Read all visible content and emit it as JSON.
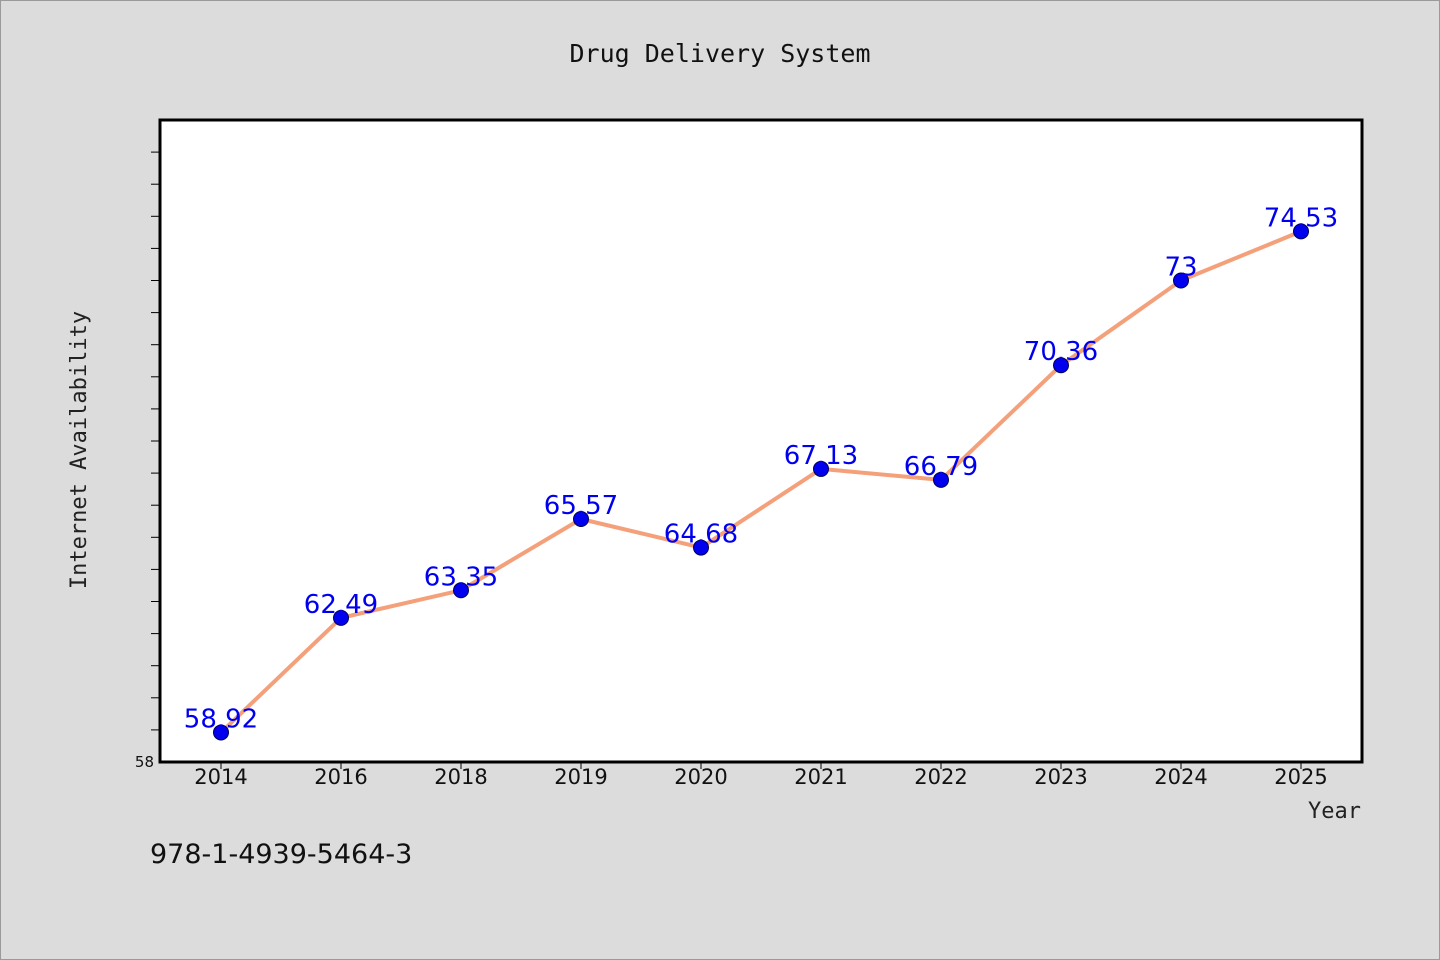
{
  "chart_data": {
    "type": "line",
    "title": "Drug Delivery System",
    "xlabel": "Year",
    "ylabel": "Internet Availability",
    "categories": [
      "2014",
      "2016",
      "2018",
      "2019",
      "2020",
      "2021",
      "2022",
      "2023",
      "2024",
      "2025"
    ],
    "series": [
      {
        "values": [
          58.92,
          62.49,
          63.35,
          65.57,
          64.68,
          67.13,
          66.79,
          70.36,
          73,
          74.53
        ],
        "labels": [
          "58.92",
          "62.49",
          "63.35",
          "65.57",
          "64.68",
          "67.13",
          "66.79",
          "70.36",
          "73",
          "74.53"
        ],
        "line_color": "#f4a07a",
        "marker_color": "#0000ee",
        "label_color": "#0000ee"
      }
    ],
    "ylim": [
      58,
      78
    ],
    "y_tick_label": "58",
    "grid": false,
    "legend": "none"
  },
  "footnote": "978-1-4939-5464-3",
  "colors": {
    "background": "#dcdcdc",
    "plot_background": "#ffffff",
    "frame": "#000000"
  }
}
